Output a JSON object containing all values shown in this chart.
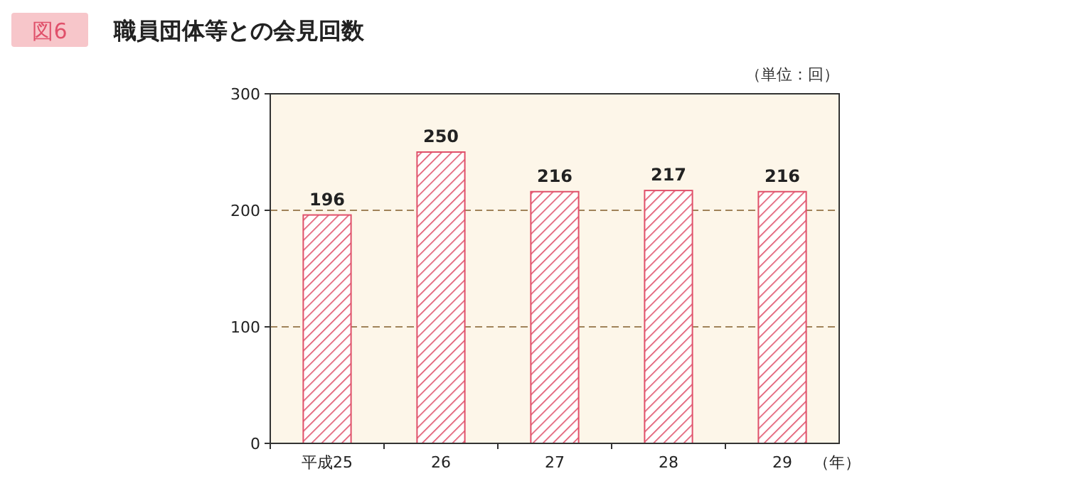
{
  "chart_data": {
    "type": "bar",
    "title": "職員団体等との会見回数",
    "annotations": [
      "図6",
      "（単位：回）"
    ],
    "xlabel": "（年）",
    "categories": [
      "平成25",
      "26",
      "27",
      "28",
      "29"
    ],
    "values": [
      196,
      250,
      216,
      217,
      216
    ],
    "color": "#e0506a",
    "ylim": [
      0,
      300
    ],
    "yticks": [
      0,
      100,
      200,
      300
    ],
    "grid": "y",
    "data_labels": true
  }
}
